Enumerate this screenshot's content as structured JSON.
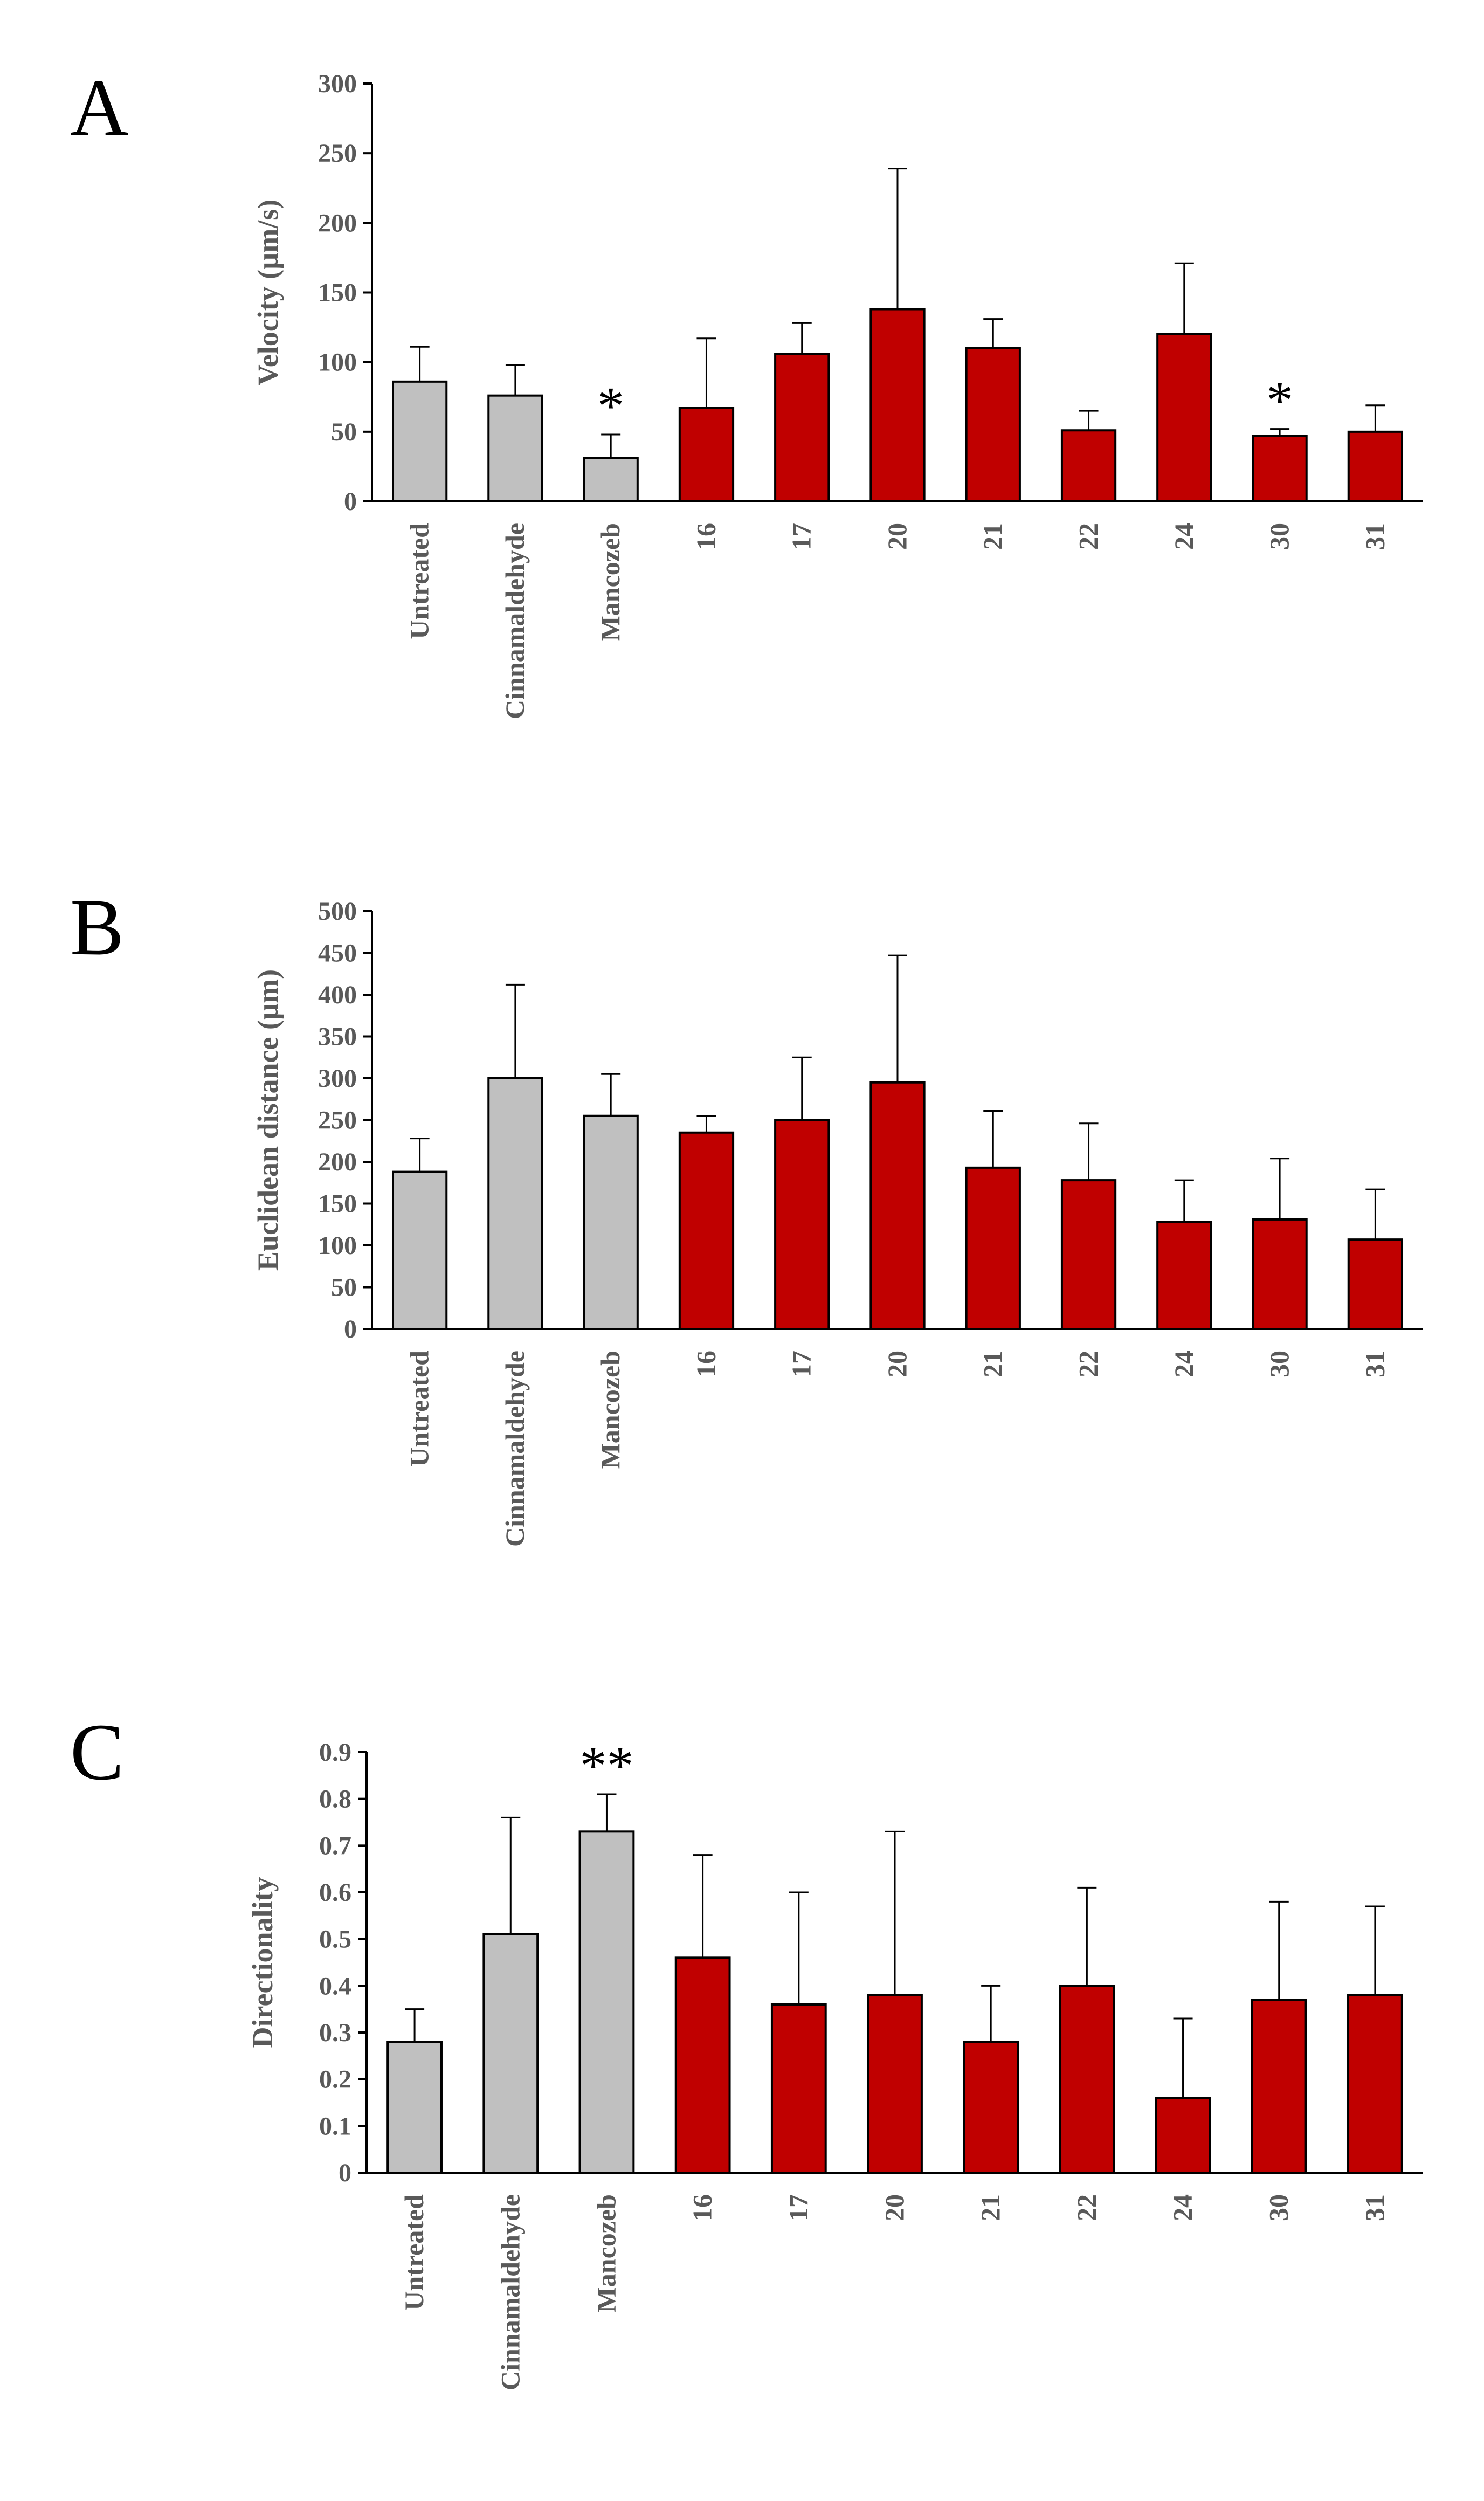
{
  "colors": {
    "control_fill": "#C0C0C0",
    "compound_fill": "#C00000",
    "bar_stroke": "#000000",
    "axis": "#000000",
    "text": "#595959"
  },
  "chart_data": [
    {
      "panel": "A",
      "type": "bar",
      "ylabel": "Velocity (µm/s)",
      "xlabel": "",
      "ylim": [
        0,
        300
      ],
      "yticks": [
        0,
        50,
        100,
        150,
        200,
        250,
        300
      ],
      "categories": [
        "Untreated",
        "Cinnamaldehyde",
        "Mancozeb",
        "16",
        "17",
        "20",
        "21",
        "22",
        "24",
        "30",
        "31"
      ],
      "groups": [
        "control",
        "control",
        "control",
        "compound",
        "compound",
        "compound",
        "compound",
        "compound",
        "compound",
        "compound",
        "compound"
      ],
      "values": [
        86,
        76,
        31,
        67,
        106,
        138,
        110,
        51,
        120,
        47,
        50
      ],
      "error_upper": [
        25,
        22,
        17,
        50,
        22,
        101,
        21,
        14,
        51,
        5,
        19
      ],
      "significance": [
        "",
        "",
        "*",
        "",
        "",
        "",
        "",
        "",
        "",
        "*",
        ""
      ]
    },
    {
      "panel": "B",
      "type": "bar",
      "ylabel": "Euclidean distance (µm)",
      "xlabel": "",
      "ylim": [
        0,
        500
      ],
      "yticks": [
        0,
        50,
        100,
        150,
        200,
        250,
        300,
        350,
        400,
        450,
        500
      ],
      "categories": [
        "Untreated",
        "Cinnamaldehyde",
        "Mancozeb",
        "16",
        "17",
        "20",
        "21",
        "22",
        "24",
        "30",
        "31"
      ],
      "groups": [
        "control",
        "control",
        "control",
        "compound",
        "compound",
        "compound",
        "compound",
        "compound",
        "compound",
        "compound",
        "compound"
      ],
      "values": [
        188,
        300,
        255,
        235,
        250,
        295,
        193,
        178,
        128,
        131,
        107
      ],
      "error_upper": [
        40,
        112,
        50,
        20,
        75,
        152,
        68,
        68,
        50,
        73,
        60
      ],
      "significance": [
        "",
        "",
        "",
        "",
        "",
        "",
        "",
        "",
        "",
        "",
        ""
      ]
    },
    {
      "panel": "C",
      "type": "bar",
      "ylabel": "Directionality",
      "xlabel": "",
      "ylim": [
        0,
        0.9
      ],
      "yticks": [
        0,
        0.1,
        0.2,
        0.3,
        0.4,
        0.5,
        0.6,
        0.7,
        0.8,
        0.9
      ],
      "categories": [
        "Untreated",
        "Cinnamaldehyde",
        "Mancozeb",
        "16",
        "17",
        "20",
        "21",
        "22",
        "24",
        "30",
        "31"
      ],
      "groups": [
        "control",
        "control",
        "control",
        "compound",
        "compound",
        "compound",
        "compound",
        "compound",
        "compound",
        "compound",
        "compound"
      ],
      "values": [
        0.28,
        0.51,
        0.73,
        0.46,
        0.36,
        0.38,
        0.28,
        0.4,
        0.16,
        0.37,
        0.38
      ],
      "error_upper": [
        0.07,
        0.25,
        0.08,
        0.22,
        0.24,
        0.35,
        0.12,
        0.21,
        0.17,
        0.21,
        0.19
      ],
      "significance": [
        "",
        "",
        "**",
        "",
        "",
        "",
        "",
        "",
        "",
        "",
        ""
      ]
    }
  ]
}
